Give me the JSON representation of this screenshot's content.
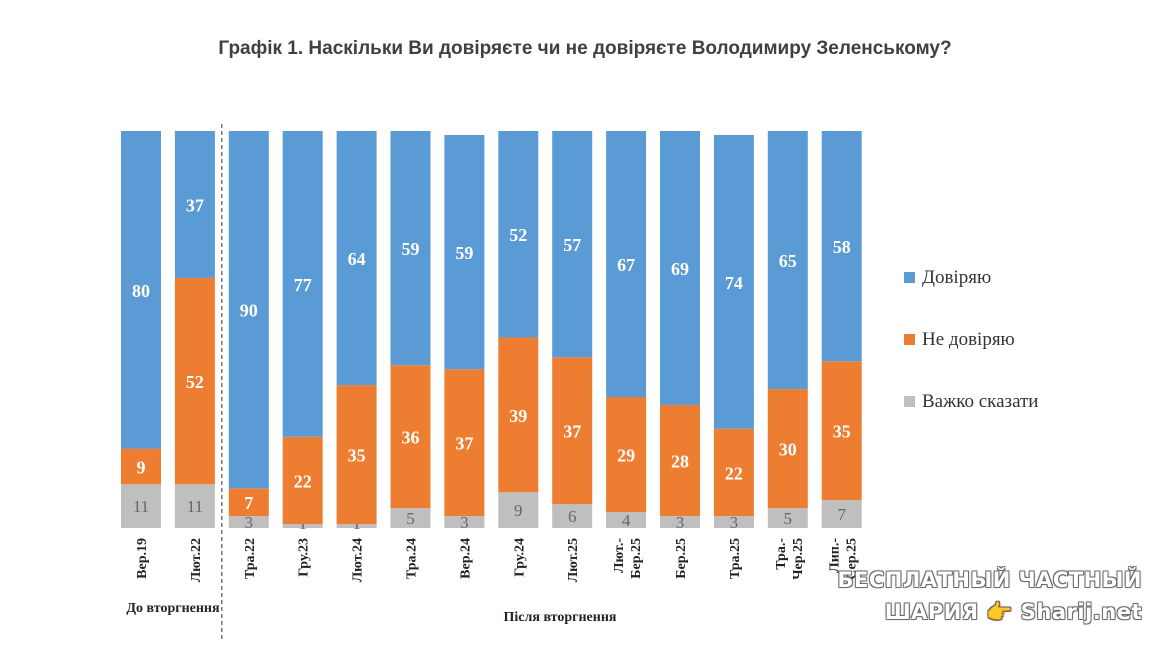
{
  "chart_data": {
    "type": "bar",
    "stacked": true,
    "title": "Графік 1. Наскільки Ви довіряєте чи не довіряєте Володимиру Зеленському?",
    "categories": [
      "Вер.19",
      "Лют.22",
      "Тра.22",
      "Гру.23",
      "Лют.24",
      "Тра.24",
      "Вер.24",
      "Гру.24",
      "Лют.25",
      "Лют.-Бер.25",
      "Бер.25",
      "Тра.25",
      "Тра.-Чер.25",
      "Лип.-Сер.25"
    ],
    "series": [
      {
        "name": "Довіряю",
        "color": "#5B9BD5",
        "values": [
          80,
          37,
          90,
          77,
          64,
          59,
          59,
          52,
          57,
          67,
          69,
          74,
          65,
          58
        ]
      },
      {
        "name": "Не довіряю",
        "color": "#ED7D31",
        "values": [
          9,
          52,
          7,
          22,
          35,
          36,
          37,
          39,
          37,
          29,
          28,
          22,
          30,
          35
        ]
      },
      {
        "name": "Важко сказати",
        "color": "#BFBFBF",
        "values": [
          11,
          11,
          3,
          1,
          1,
          5,
          3,
          9,
          6,
          4,
          3,
          3,
          5,
          7
        ]
      }
    ],
    "groups": [
      {
        "label": "До вторгнення",
        "categories": [
          "Вер.19",
          "Лют.22"
        ]
      },
      {
        "label": "Після вторгнення",
        "categories": [
          "Тра.22",
          "Гру.23",
          "Лют.24",
          "Тра.24",
          "Вер.24",
          "Гру.24",
          "Лют.25",
          "Лют.-Бер.25",
          "Бер.25",
          "Тра.25",
          "Тра.-Чер.25",
          "Лип.-Сер.25"
        ]
      }
    ],
    "legend_position": "right",
    "grid": false
  },
  "watermark": {
    "line1": "БЕСПЛАТНЫЙ ЧАСТНЫЙ",
    "line2": "ШАРИЯ 👉 Sharij.net"
  }
}
